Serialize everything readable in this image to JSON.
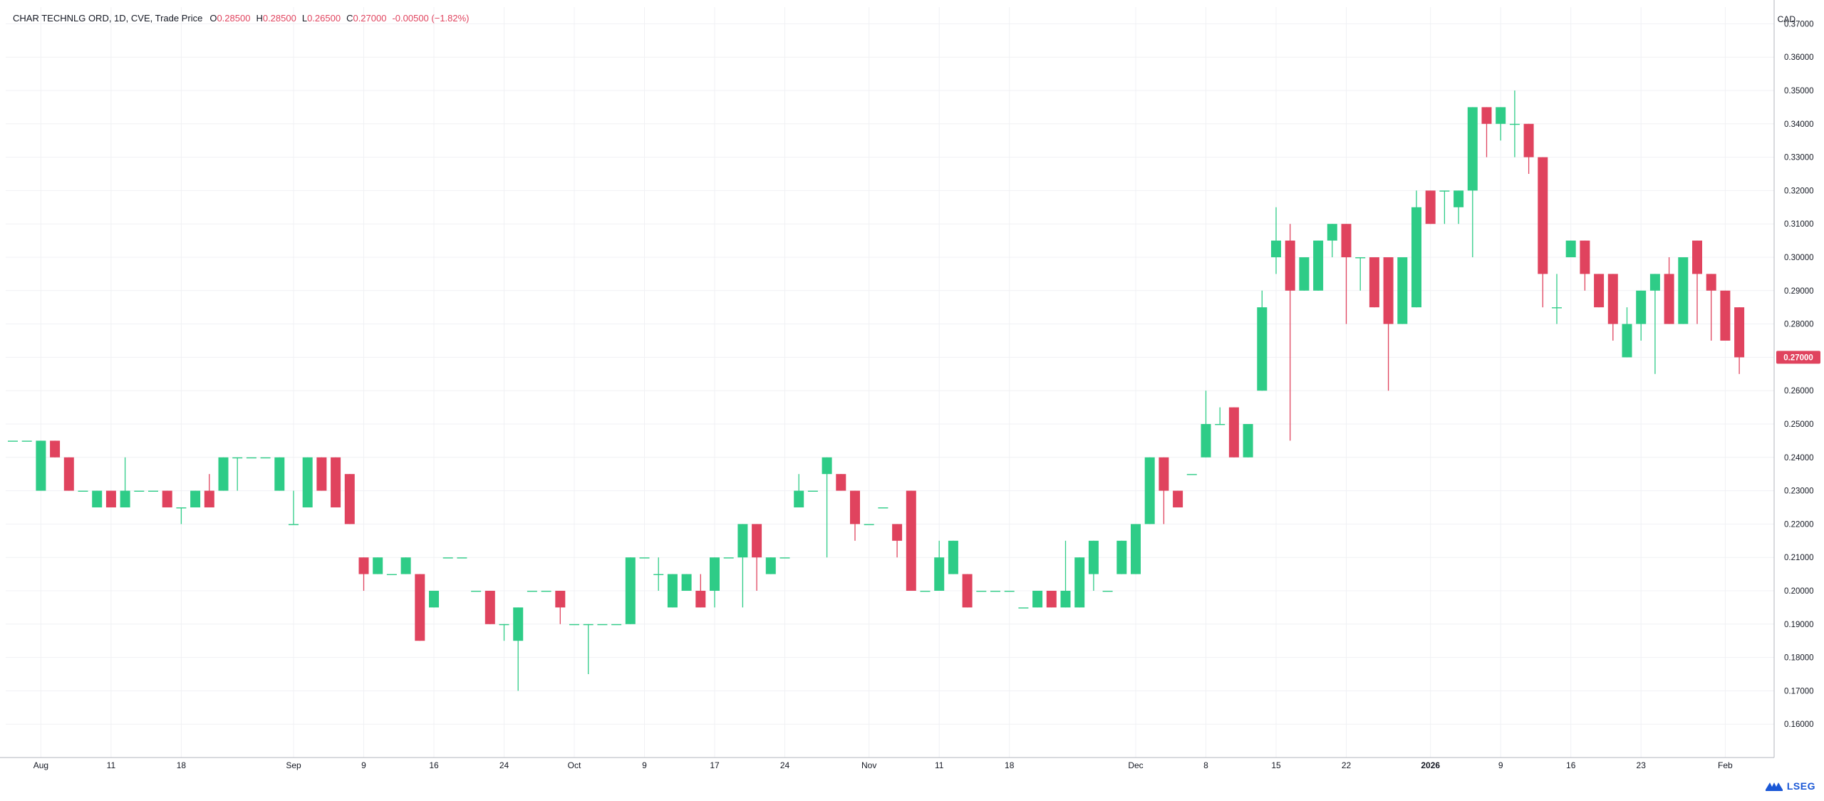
{
  "header": {
    "symbol": "CHAR TECHNLG ORD, 1D, CVE, Trade Price",
    "o_label": "O",
    "o_value": "0.28500",
    "h_label": "H",
    "h_value": "0.28500",
    "l_label": "L",
    "l_value": "0.26500",
    "c_label": "C",
    "c_value": "0.27000",
    "change": "-0.00500 (−1.82%)"
  },
  "currency": "CAD",
  "logo_text": "LSEG",
  "last_price_label": "0.27000",
  "colors": {
    "up": "#2ecc87",
    "down": "#e0435e",
    "grid": "#f0f1f4",
    "axis": "#131722"
  },
  "chart_data": {
    "type": "candlestick",
    "ylim": [
      0.15,
      0.375
    ],
    "y_ticks": [
      "0.16000",
      "0.17000",
      "0.18000",
      "0.19000",
      "0.20000",
      "0.21000",
      "0.22000",
      "0.23000",
      "0.24000",
      "0.25000",
      "0.26000",
      "0.27000",
      "0.28000",
      "0.29000",
      "0.30000",
      "0.31000",
      "0.32000",
      "0.33000",
      "0.34000",
      "0.35000",
      "0.36000",
      "0.37000"
    ],
    "x_ticks": [
      {
        "i": 2,
        "label": "Aug",
        "bold": false
      },
      {
        "i": 7,
        "label": "11",
        "bold": false
      },
      {
        "i": 12,
        "label": "18",
        "bold": false
      },
      {
        "i": 20,
        "label": "Sep",
        "bold": false
      },
      {
        "i": 25,
        "label": "9",
        "bold": false
      },
      {
        "i": 30,
        "label": "16",
        "bold": false
      },
      {
        "i": 35,
        "label": "24",
        "bold": false
      },
      {
        "i": 40,
        "label": "Oct",
        "bold": false
      },
      {
        "i": 45,
        "label": "9",
        "bold": false
      },
      {
        "i": 50,
        "label": "17",
        "bold": false
      },
      {
        "i": 55,
        "label": "24",
        "bold": false
      },
      {
        "i": 61,
        "label": "Nov",
        "bold": false
      },
      {
        "i": 66,
        "label": "11",
        "bold": false
      },
      {
        "i": 71,
        "label": "18",
        "bold": false
      },
      {
        "i": 80,
        "label": "Dec",
        "bold": false
      },
      {
        "i": 85,
        "label": "8",
        "bold": false
      },
      {
        "i": 90,
        "label": "15",
        "bold": false
      },
      {
        "i": 95,
        "label": "22",
        "bold": false
      },
      {
        "i": 101,
        "label": "2026",
        "bold": true
      },
      {
        "i": 106,
        "label": "9",
        "bold": false
      },
      {
        "i": 111,
        "label": "16",
        "bold": false
      },
      {
        "i": 116,
        "label": "23",
        "bold": false
      },
      {
        "i": 122,
        "label": "Feb",
        "bold": false
      }
    ],
    "candles": [
      [
        0.245,
        0.245,
        0.245,
        0.245
      ],
      [
        0.245,
        0.245,
        0.245,
        0.245
      ],
      [
        0.23,
        0.245,
        0.23,
        0.245
      ],
      [
        0.245,
        0.245,
        0.24,
        0.24
      ],
      [
        0.24,
        0.24,
        0.23,
        0.23
      ],
      [
        0.23,
        0.23,
        0.23,
        0.23
      ],
      [
        0.225,
        0.23,
        0.225,
        0.23
      ],
      [
        0.23,
        0.23,
        0.225,
        0.225
      ],
      [
        0.225,
        0.24,
        0.225,
        0.23
      ],
      [
        0.23,
        0.23,
        0.23,
        0.23
      ],
      [
        0.23,
        0.23,
        0.23,
        0.23
      ],
      [
        0.23,
        0.23,
        0.225,
        0.225
      ],
      [
        0.225,
        0.225,
        0.22,
        0.225
      ],
      [
        0.225,
        0.23,
        0.225,
        0.23
      ],
      [
        0.23,
        0.235,
        0.225,
        0.225
      ],
      [
        0.23,
        0.24,
        0.23,
        0.24
      ],
      [
        0.24,
        0.24,
        0.23,
        0.24
      ],
      [
        0.24,
        0.24,
        0.24,
        0.24
      ],
      [
        0.24,
        0.24,
        0.24,
        0.24
      ],
      [
        0.23,
        0.24,
        0.23,
        0.24
      ],
      [
        0.22,
        0.23,
        0.22,
        0.22
      ],
      [
        0.225,
        0.24,
        0.225,
        0.24
      ],
      [
        0.24,
        0.24,
        0.23,
        0.23
      ],
      [
        0.24,
        0.24,
        0.225,
        0.225
      ],
      [
        0.235,
        0.235,
        0.22,
        0.22
      ],
      [
        0.21,
        0.21,
        0.2,
        0.205
      ],
      [
        0.205,
        0.21,
        0.205,
        0.21
      ],
      [
        0.205,
        0.205,
        0.205,
        0.205
      ],
      [
        0.205,
        0.21,
        0.205,
        0.21
      ],
      [
        0.205,
        0.205,
        0.185,
        0.185
      ],
      [
        0.195,
        0.2,
        0.195,
        0.2
      ],
      [
        0.21,
        0.21,
        0.21,
        0.21
      ],
      [
        0.21,
        0.21,
        0.21,
        0.21
      ],
      [
        0.2,
        0.2,
        0.2,
        0.2
      ],
      [
        0.2,
        0.2,
        0.19,
        0.19
      ],
      [
        0.19,
        0.19,
        0.185,
        0.19
      ],
      [
        0.185,
        0.195,
        0.17,
        0.195
      ],
      [
        0.2,
        0.2,
        0.2,
        0.2
      ],
      [
        0.2,
        0.2,
        0.2,
        0.2
      ],
      [
        0.2,
        0.2,
        0.19,
        0.195
      ],
      [
        0.19,
        0.19,
        0.19,
        0.19
      ],
      [
        0.19,
        0.19,
        0.175,
        0.19
      ],
      [
        0.19,
        0.19,
        0.19,
        0.19
      ],
      [
        0.19,
        0.19,
        0.19,
        0.19
      ],
      [
        0.19,
        0.21,
        0.19,
        0.21
      ],
      [
        0.21,
        0.21,
        0.21,
        0.21
      ],
      [
        0.205,
        0.21,
        0.2,
        0.205
      ],
      [
        0.195,
        0.205,
        0.195,
        0.205
      ],
      [
        0.2,
        0.205,
        0.2,
        0.205
      ],
      [
        0.2,
        0.205,
        0.195,
        0.195
      ],
      [
        0.2,
        0.21,
        0.195,
        0.21
      ],
      [
        0.21,
        0.21,
        0.21,
        0.21
      ],
      [
        0.21,
        0.22,
        0.195,
        0.22
      ],
      [
        0.22,
        0.22,
        0.2,
        0.21
      ],
      [
        0.205,
        0.21,
        0.205,
        0.21
      ],
      [
        0.21,
        0.21,
        0.21,
        0.21
      ],
      [
        0.225,
        0.235,
        0.225,
        0.23
      ],
      [
        0.23,
        0.23,
        0.23,
        0.23
      ],
      [
        0.235,
        0.24,
        0.21,
        0.24
      ],
      [
        0.235,
        0.235,
        0.23,
        0.23
      ],
      [
        0.23,
        0.23,
        0.215,
        0.22
      ],
      [
        0.22,
        0.22,
        0.22,
        0.22
      ],
      [
        0.225,
        0.225,
        0.225,
        0.225
      ],
      [
        0.22,
        0.22,
        0.21,
        0.215
      ],
      [
        0.23,
        0.23,
        0.2,
        0.2
      ],
      [
        0.2,
        0.2,
        0.2,
        0.2
      ],
      [
        0.2,
        0.215,
        0.2,
        0.21
      ],
      [
        0.205,
        0.215,
        0.205,
        0.215
      ],
      [
        0.205,
        0.205,
        0.195,
        0.195
      ],
      [
        0.2,
        0.2,
        0.2,
        0.2
      ],
      [
        0.2,
        0.2,
        0.2,
        0.2
      ],
      [
        0.2,
        0.2,
        0.2,
        0.2
      ],
      [
        0.195,
        0.195,
        0.195,
        0.195
      ],
      [
        0.195,
        0.2,
        0.195,
        0.2
      ],
      [
        0.2,
        0.2,
        0.195,
        0.195
      ],
      [
        0.195,
        0.215,
        0.195,
        0.2
      ],
      [
        0.195,
        0.21,
        0.195,
        0.21
      ],
      [
        0.205,
        0.215,
        0.2,
        0.215
      ],
      [
        0.2,
        0.2,
        0.2,
        0.2
      ],
      [
        0.205,
        0.215,
        0.205,
        0.215
      ],
      [
        0.205,
        0.22,
        0.205,
        0.22
      ],
      [
        0.22,
        0.24,
        0.22,
        0.24
      ],
      [
        0.24,
        0.24,
        0.22,
        0.23
      ],
      [
        0.23,
        0.23,
        0.225,
        0.225
      ],
      [
        0.235,
        0.235,
        0.235,
        0.235
      ],
      [
        0.24,
        0.26,
        0.24,
        0.25
      ],
      [
        0.25,
        0.255,
        0.25,
        0.25
      ],
      [
        0.255,
        0.255,
        0.24,
        0.24
      ],
      [
        0.24,
        0.25,
        0.24,
        0.25
      ],
      [
        0.26,
        0.29,
        0.26,
        0.285
      ],
      [
        0.3,
        0.315,
        0.295,
        0.305
      ],
      [
        0.305,
        0.31,
        0.245,
        0.29
      ],
      [
        0.29,
        0.3,
        0.29,
        0.3
      ],
      [
        0.29,
        0.305,
        0.29,
        0.305
      ],
      [
        0.305,
        0.31,
        0.3,
        0.31
      ],
      [
        0.31,
        0.31,
        0.28,
        0.3
      ],
      [
        0.3,
        0.3,
        0.29,
        0.3
      ],
      [
        0.3,
        0.3,
        0.285,
        0.285
      ],
      [
        0.3,
        0.3,
        0.26,
        0.28
      ],
      [
        0.28,
        0.3,
        0.28,
        0.3
      ],
      [
        0.285,
        0.32,
        0.285,
        0.315
      ],
      [
        0.32,
        0.32,
        0.31,
        0.31
      ],
      [
        0.32,
        0.32,
        0.31,
        0.32
      ],
      [
        0.315,
        0.32,
        0.31,
        0.32
      ],
      [
        0.32,
        0.345,
        0.3,
        0.345
      ],
      [
        0.345,
        0.345,
        0.33,
        0.34
      ],
      [
        0.34,
        0.345,
        0.335,
        0.345
      ],
      [
        0.34,
        0.35,
        0.33,
        0.34
      ],
      [
        0.34,
        0.34,
        0.325,
        0.33
      ],
      [
        0.33,
        0.33,
        0.285,
        0.295
      ],
      [
        0.285,
        0.295,
        0.28,
        0.285
      ],
      [
        0.3,
        0.305,
        0.3,
        0.305
      ],
      [
        0.305,
        0.305,
        0.29,
        0.295
      ],
      [
        0.295,
        0.295,
        0.285,
        0.285
      ],
      [
        0.295,
        0.295,
        0.275,
        0.28
      ],
      [
        0.27,
        0.285,
        0.27,
        0.28
      ],
      [
        0.28,
        0.29,
        0.275,
        0.29
      ],
      [
        0.29,
        0.295,
        0.265,
        0.295
      ],
      [
        0.295,
        0.3,
        0.28,
        0.28
      ],
      [
        0.28,
        0.3,
        0.28,
        0.3
      ],
      [
        0.305,
        0.305,
        0.28,
        0.295
      ],
      [
        0.295,
        0.295,
        0.275,
        0.29
      ],
      [
        0.29,
        0.29,
        0.275,
        0.275
      ],
      [
        0.285,
        0.285,
        0.265,
        0.27
      ]
    ]
  }
}
